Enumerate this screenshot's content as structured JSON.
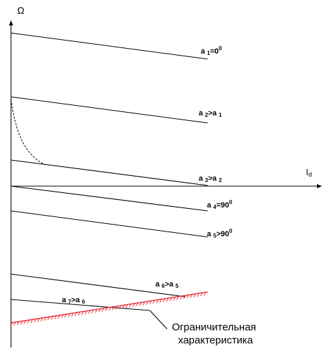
{
  "axes": {
    "y_label": "Ω",
    "x_label_main": "I",
    "x_label_sub": "d"
  },
  "curves": [
    {
      "sym": "a",
      "sub": "1",
      "rel": "=0",
      "sup": "0",
      "rhs_sym": "",
      "rhs_sub": ""
    },
    {
      "sym": "a",
      "sub": "2",
      "rel": ">",
      "sup": "",
      "rhs_sym": "a",
      "rhs_sub": "1"
    },
    {
      "sym": "a",
      "sub": "3",
      "rel": ">",
      "sup": "",
      "rhs_sym": "a",
      "rhs_sub": "2"
    },
    {
      "sym": "a",
      "sub": "4",
      "rel": "=90",
      "sup": "0",
      "rhs_sym": "",
      "rhs_sub": ""
    },
    {
      "sym": "a",
      "sub": "5",
      "rel": ">90",
      "sup": "0",
      "rhs_sym": "",
      "rhs_sub": ""
    },
    {
      "sym": "a",
      "sub": "6",
      "rel": ">",
      "sup": "",
      "rhs_sym": "a",
      "rhs_sub": "5"
    },
    {
      "sym": "a",
      "sub": "7",
      "rel": ">",
      "sup": "",
      "rhs_sym": "a",
      "rhs_sub": "6"
    }
  ],
  "limit_caption": {
    "line1": "Ограничительная",
    "line2": "характеристика"
  },
  "colors": {
    "hatch": "#e8323c",
    "line": "#000000"
  }
}
